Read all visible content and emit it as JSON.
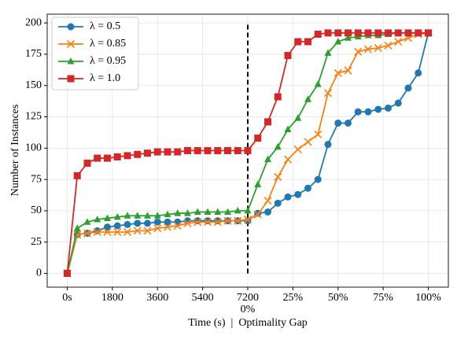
{
  "chart_data": {
    "type": "line",
    "xlabel": "Time (s)  |  Optimality Gap",
    "ylabel": "Number of Instances",
    "x": [
      0,
      1,
      2,
      3,
      4,
      5,
      6,
      7,
      8,
      9,
      10,
      11,
      12,
      13,
      14,
      15,
      16,
      17,
      18,
      19,
      20,
      21,
      22,
      23,
      24,
      25,
      26,
      27,
      28,
      29,
      30,
      31,
      32,
      33,
      34,
      35,
      36
    ],
    "series": [
      {
        "name": "λ = 0.5",
        "color": "#1f77b4",
        "marker": "circle",
        "values": [
          0,
          31,
          32,
          34,
          37,
          38,
          39,
          40,
          40,
          41,
          41,
          41,
          42,
          42,
          42,
          42,
          42,
          42,
          42,
          48,
          49,
          56,
          61,
          63,
          68,
          75,
          103,
          120,
          120,
          129,
          129,
          131,
          132,
          136,
          148,
          160,
          192
        ]
      },
      {
        "name": "λ = 0.85",
        "color": "#ff7f0e",
        "marker": "x",
        "values": [
          0,
          31,
          32,
          33,
          33,
          33,
          33,
          34,
          34,
          36,
          37,
          38,
          40,
          41,
          41,
          41,
          42,
          42,
          43,
          47,
          58,
          77,
          91,
          99,
          105,
          111,
          144,
          160,
          162,
          177,
          179,
          180,
          182,
          185,
          188,
          191,
          192
        ]
      },
      {
        "name": "λ = 0.95",
        "color": "#2ca02c",
        "marker": "triangle",
        "values": [
          0,
          36,
          41,
          43,
          44,
          45,
          46,
          46,
          46,
          46,
          47,
          48,
          48,
          49,
          49,
          49,
          49,
          50,
          50,
          71,
          91,
          101,
          115,
          124,
          139,
          151,
          176,
          185,
          188,
          189,
          190,
          190,
          191,
          192,
          192,
          192,
          192
        ]
      },
      {
        "name": "λ = 1.0",
        "color": "#d62728",
        "marker": "square",
        "values": [
          0,
          78,
          88,
          92,
          92,
          93,
          94,
          95,
          96,
          97,
          97,
          97,
          98,
          98,
          98,
          98,
          98,
          98,
          98,
          108,
          121,
          141,
          174,
          185,
          185,
          191,
          192,
          192,
          192,
          192,
          192,
          192,
          192,
          192,
          192,
          192,
          192
        ]
      }
    ],
    "xlim": [
      -2,
      38
    ],
    "ylim": [
      -11,
      207
    ],
    "xticks": [
      {
        "value": 0,
        "label": "0s"
      },
      {
        "value": 4.5,
        "label": "1800"
      },
      {
        "value": 9,
        "label": "3600"
      },
      {
        "value": 13.5,
        "label": "5400"
      },
      {
        "value": 18,
        "label": "7200"
      },
      {
        "value": 22.5,
        "label": "25%"
      },
      {
        "value": 27,
        "label": "50%"
      },
      {
        "value": 31.5,
        "label": "75%"
      },
      {
        "value": 36,
        "label": "100%"
      }
    ],
    "yticks": [
      0,
      25,
      50,
      75,
      100,
      125,
      150,
      175,
      200
    ],
    "annotations": [
      {
        "x": 18,
        "text": "0%"
      }
    ],
    "vline": {
      "x": 18,
      "ymin": 0,
      "ymax": 200,
      "color": "#000000"
    },
    "grid": true,
    "legend": "upper-left"
  }
}
